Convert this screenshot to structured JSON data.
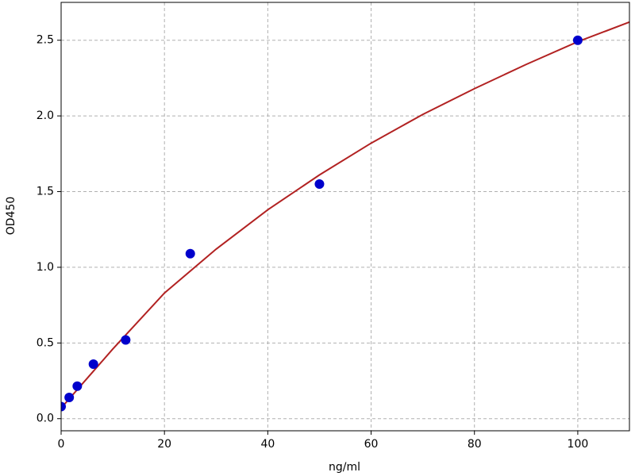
{
  "chart_data": {
    "type": "scatter",
    "xlabel": "ng/ml",
    "ylabel": "OD450",
    "xlim": [
      0,
      110
    ],
    "ylim": [
      -0.08,
      2.75
    ],
    "xticks": [
      0,
      20,
      40,
      60,
      80,
      100
    ],
    "yticks": [
      {
        "value": 0,
        "label": "0.0"
      },
      0.5,
      {
        "value": 1,
        "label": "1.0"
      },
      1.5,
      {
        "value": 2,
        "label": "2.0"
      },
      2.5
    ],
    "grid": true,
    "series": [
      {
        "type": "line",
        "color": "#b22222",
        "x": [
          0,
          10,
          20,
          30,
          40,
          50,
          60,
          70,
          80,
          90,
          100,
          110
        ],
        "values": [
          0.07,
          0.46,
          0.83,
          1.12,
          1.38,
          1.61,
          1.82,
          2.01,
          2.18,
          2.34,
          2.49,
          2.62
        ]
      },
      {
        "type": "scatter",
        "color": "#0000cc",
        "x": [
          0,
          1.5625,
          3.125,
          6.25,
          12.5,
          25,
          50,
          100
        ],
        "values": [
          0.08,
          0.14,
          0.215,
          0.36,
          0.52,
          1.09,
          1.55,
          2.5
        ]
      }
    ]
  }
}
